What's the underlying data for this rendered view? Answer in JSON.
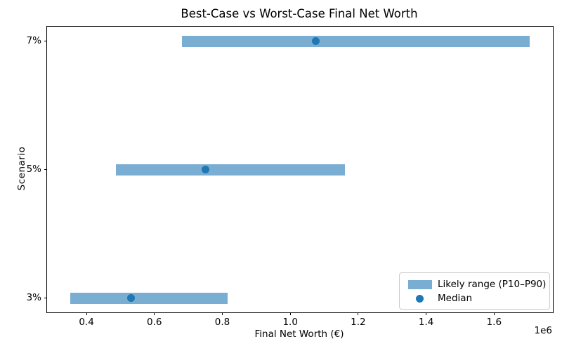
{
  "title": "Best-Case vs Worst-Case Final Net Worth",
  "axes": {
    "xlabel": "Final Net Worth (€)",
    "ylabel": "Scenario",
    "offset_text": "1e6"
  },
  "legend": {
    "range_label": "Likely range (P10–P90)",
    "median_label": "Median"
  },
  "colors": {
    "bar": "#79add2",
    "median": "#1f77b4"
  },
  "chart_data": {
    "type": "bar",
    "subtype": "horizontal-range-bar",
    "title": "Best-Case vs Worst-Case Final Net Worth",
    "xlabel": "Final Net Worth (€)",
    "ylabel": "Scenario",
    "categories": [
      "3%",
      "5%",
      "7%"
    ],
    "series": [
      {
        "name": "P10",
        "values": [
          352000,
          486000,
          682000
        ]
      },
      {
        "name": "Median",
        "values": [
          532000,
          751000,
          1074000
        ]
      },
      {
        "name": "P90",
        "values": [
          815000,
          1160000,
          1705000
        ]
      }
    ],
    "xlim": [
      284000,
      1773000
    ],
    "xticks": [
      400000,
      600000,
      800000,
      1000000,
      1200000,
      1400000,
      1600000
    ],
    "xtick_labels": [
      "0.4",
      "0.6",
      "0.8",
      "1.0",
      "1.2",
      "1.4",
      "1.6"
    ],
    "x_multiplier": "1e6",
    "grid": false,
    "legend_position": "lower right",
    "legend_entries": [
      "Likely range (P10–P90)",
      "Median"
    ]
  }
}
